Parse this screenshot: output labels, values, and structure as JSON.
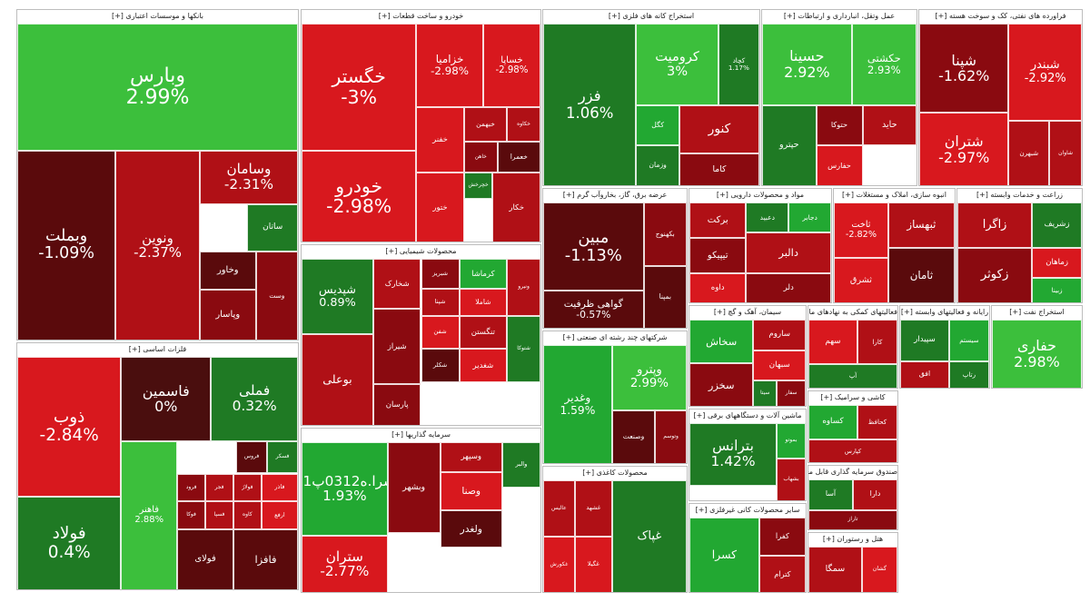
{
  "colors": {
    "pos_strong": "#22a832",
    "pos_mid": "#3cbf3c",
    "pos_light": "#63cf4a",
    "neg_light": "#d8181e",
    "neg_mid": "#b01016",
    "neg_dark": "#8a0a10",
    "neg_darker": "#5a0a0c",
    "zero": "#4a0e0e",
    "pos_dark": "#1f7a24"
  },
  "chart_data": {
    "type": "treemap",
    "sectors": [
      {
        "title": "بانکها و موسسات اعتباری [+]",
        "tiles": [
          {
            "s": "وبارس",
            "c": "2.99%",
            "v": 2.99
          },
          {
            "s": "وبملت",
            "c": "-1.09%",
            "v": -1.09
          },
          {
            "s": "ونوین",
            "c": "-2.37%",
            "v": -2.37
          },
          {
            "s": "وسامان",
            "c": "-2.31%",
            "v": -2.31
          },
          {
            "s": "ساتان",
            "c": "",
            "v": 1.2
          },
          {
            "s": "وخاور",
            "c": "",
            "v": -1.5
          },
          {
            "s": "وپاسار",
            "c": "",
            "v": -1.8
          },
          {
            "s": "وست",
            "c": "",
            "v": -2.0
          }
        ]
      },
      {
        "title": "فلزات اساسی [+]",
        "tiles": [
          {
            "s": "ذوب",
            "c": "-2.84%",
            "v": -2.84
          },
          {
            "s": "فولاد",
            "c": "0.4%",
            "v": 0.4
          },
          {
            "s": "فاسمین",
            "c": "0%",
            "v": 0
          },
          {
            "s": "فملی",
            "c": "0.32%",
            "v": 0.32
          },
          {
            "s": "فاهنر",
            "c": "2.88%",
            "v": 2.88
          },
          {
            "s": "فروس",
            "c": "",
            "v": -1.5
          },
          {
            "s": "فسکر",
            "c": "",
            "v": 1.4
          },
          {
            "s": "فرود",
            "c": "",
            "v": -2.0
          },
          {
            "s": "فجر",
            "c": "",
            "v": -2.2
          },
          {
            "s": "فولاژ",
            "c": "",
            "v": -2.5
          },
          {
            "s": "فاذر",
            "c": "",
            "v": -2.6
          },
          {
            "s": "فوکا",
            "c": "",
            "v": -1.7
          },
          {
            "s": "فسپا",
            "c": "",
            "v": -2.1
          },
          {
            "s": "کاوه",
            "c": "",
            "v": -2.3
          },
          {
            "s": "ارفع",
            "c": "",
            "v": -2.8
          },
          {
            "s": "فولای",
            "c": "",
            "v": -1.1
          },
          {
            "s": "فافزا",
            "c": "",
            "v": -1.3
          }
        ]
      },
      {
        "title": "خودرو و ساخت قطعات [+]",
        "tiles": [
          {
            "s": "خگستر",
            "c": "-3%",
            "v": -3
          },
          {
            "s": "خودرو",
            "c": "-2.98%",
            "v": -2.98
          },
          {
            "s": "خزامیا",
            "c": "-2.98%",
            "v": -2.98
          },
          {
            "s": "خساپا",
            "c": "-2.98%",
            "v": -2.98
          },
          {
            "s": "خبهمن",
            "c": "",
            "v": -2.5
          },
          {
            "s": "خکاوه",
            "c": "",
            "v": -2.2
          },
          {
            "s": "خفنر",
            "c": "",
            "v": -2.7
          },
          {
            "s": "خاهن",
            "c": "",
            "v": -1.9
          },
          {
            "s": "خعمرا",
            "c": "",
            "v": -1.4
          },
          {
            "s": "خچرخش",
            "c": "",
            "v": 1.1
          },
          {
            "s": "ختور",
            "c": "",
            "v": -2.6
          },
          {
            "s": "خکار",
            "c": "",
            "v": -2.4
          }
        ]
      },
      {
        "title": "محصولات شیمیایی [+]",
        "tiles": [
          {
            "s": "شپدیس",
            "c": "0.89%",
            "v": 0.89
          },
          {
            "s": "شخارک",
            "c": "",
            "v": -2.5
          },
          {
            "s": "شیراز",
            "c": "",
            "v": -1.8
          },
          {
            "s": "پارسان",
            "c": "",
            "v": -2.0
          },
          {
            "s": "بوعلی",
            "c": "",
            "v": -2.3
          },
          {
            "s": "شبریز",
            "c": "",
            "v": -1.6
          },
          {
            "s": "شپنا",
            "c": "",
            "v": -2.1
          },
          {
            "s": "کرماشا",
            "c": "",
            "v": 1.6
          },
          {
            "s": "شاملا",
            "c": "",
            "v": -2.7
          },
          {
            "s": "ونیرو",
            "c": "",
            "v": -2.4
          },
          {
            "s": "شفن",
            "c": "",
            "v": -2.9
          },
          {
            "s": "شکلر",
            "c": "",
            "v": -1.2
          },
          {
            "s": "تنگستن",
            "c": "",
            "v": -2.2
          },
          {
            "s": "شغدیر",
            "c": "",
            "v": -2.8
          },
          {
            "s": "شتوکا",
            "c": "",
            "v": 1.3
          }
        ]
      },
      {
        "title": "سرمایه گذاریها [+]",
        "tiles": [
          {
            "s": "سرا.ه0312پ01",
            "c": "1.93%",
            "v": 1.93
          },
          {
            "s": "ستران",
            "c": "-2.77%",
            "v": -2.77
          },
          {
            "s": "وسپهر",
            "c": "",
            "v": -2.3
          },
          {
            "s": "وبشهر",
            "c": "",
            "v": -2.0
          },
          {
            "s": "وصنا",
            "c": "",
            "v": -2.6
          },
          {
            "s": "ولغدر",
            "c": "",
            "v": -1.5
          },
          {
            "s": "والبر",
            "c": "",
            "v": 1.2
          }
        ]
      },
      {
        "title": "استخراج کانه های فلزی [+]",
        "tiles": [
          {
            "s": "فزر",
            "c": "1.06%",
            "v": 1.06
          },
          {
            "s": "کرومیت",
            "c": "3%",
            "v": 3
          },
          {
            "s": "کچاد",
            "c": "1.17%",
            "v": 1.17
          },
          {
            "s": "کنور",
            "c": "",
            "v": -2.4
          },
          {
            "s": "کگل",
            "c": "",
            "v": 1.8
          },
          {
            "s": "وزمان",
            "c": "",
            "v": 1.5
          },
          {
            "s": "کاما",
            "c": "",
            "v": -2.0
          }
        ]
      },
      {
        "title": "عرضه برق، گاز، بخاروآب گرم [+]",
        "tiles": [
          {
            "s": "مبین",
            "c": "-1.13%",
            "v": -1.13
          },
          {
            "s": "گواهی ظرفیت",
            "c": "-0.57%",
            "v": -0.57
          },
          {
            "s": "بکهنوج",
            "c": "",
            "v": -2.0
          },
          {
            "s": "بمپنا",
            "c": "",
            "v": -1.5
          }
        ]
      },
      {
        "title": "شرکتهای چند رشته ای صنعتی [+]",
        "tiles": [
          {
            "s": "وغدیر",
            "c": "1.59%",
            "v": 1.59
          },
          {
            "s": "وپترو",
            "c": "2.99%",
            "v": 2.99
          },
          {
            "s": "وصنعت",
            "c": "",
            "v": -0.8
          },
          {
            "s": "وتوسم",
            "c": "",
            "v": -2.0
          }
        ]
      },
      {
        "title": "محصولات کاغذی [+]",
        "tiles": [
          {
            "s": "عالیس",
            "c": "",
            "v": -2.5
          },
          {
            "s": "غکورش",
            "c": "",
            "v": -2.8
          },
          {
            "s": "غشهد",
            "c": "",
            "v": -2.1
          },
          {
            "s": "غگیلا",
            "c": "",
            "v": -2.6
          },
          {
            "s": "غپاک",
            "c": "",
            "v": 1.2
          }
        ]
      },
      {
        "title": "عمل وتقل، انبارداری و ارتباطات [+]",
        "tiles": [
          {
            "s": "حسینا",
            "c": "2.92%",
            "v": 2.92
          },
          {
            "s": "حکشتی",
            "c": "2.93%",
            "v": 2.93
          },
          {
            "s": "حتوکا",
            "c": "",
            "v": -2.0
          },
          {
            "s": "حاید",
            "c": "",
            "v": -2.3
          },
          {
            "s": "حفارس",
            "c": "",
            "v": -2.6
          },
          {
            "s": "حپترو",
            "c": "",
            "v": 1.0
          }
        ]
      },
      {
        "title": "فراورده های نفتی، کک و سوخت هسته [+]",
        "tiles": [
          {
            "s": "شبندر",
            "c": "-2.92%",
            "v": -2.92
          },
          {
            "s": "شپنا",
            "c": "-1.62%",
            "v": -1.62
          },
          {
            "s": "شتران",
            "c": "-2.97%",
            "v": -2.97
          },
          {
            "s": "شبهرن",
            "c": "",
            "v": -2.4
          },
          {
            "s": "شاوان",
            "c": "",
            "v": -2.1
          }
        ]
      },
      {
        "title": "مواد و محصولات دارویی [+]",
        "tiles": [
          {
            "s": "برکت",
            "c": "",
            "v": -2.5
          },
          {
            "s": "تیپیکو",
            "c": "",
            "v": -2.0
          },
          {
            "s": "داوه",
            "c": "",
            "v": -2.7
          },
          {
            "s": "دعبید",
            "c": "",
            "v": 1.3
          },
          {
            "s": "دجابر",
            "c": "",
            "v": 1.8
          },
          {
            "s": "دالبر",
            "c": "",
            "v": -2.3
          },
          {
            "s": "دلر",
            "c": "",
            "v": -1.6
          }
        ]
      },
      {
        "title": "انبوه سازی، املاک و مستغلات [+]",
        "tiles": [
          {
            "s": "ثبهساز",
            "c": "",
            "v": -2.1
          },
          {
            "s": "ثشرق",
            "c": "",
            "v": -2.6
          },
          {
            "s": "ثاخت",
            "c": "-2.82%",
            "v": -2.82
          },
          {
            "s": "ثامان",
            "c": "",
            "v": -1.4
          }
        ]
      },
      {
        "title": "زراعت و خدمات وابسته [+]",
        "tiles": [
          {
            "s": "زاگرا",
            "c": "",
            "v": -2.4
          },
          {
            "s": "زشریف",
            "c": "",
            "v": 1.3
          },
          {
            "s": "زکوثر",
            "c": "",
            "v": -2.0
          },
          {
            "s": "زماهان",
            "c": "",
            "v": -2.7
          },
          {
            "s": "زبینا",
            "c": "",
            "v": 1.6
          }
        ]
      },
      {
        "title": "سیمان، آهک و گچ [+]",
        "tiles": [
          {
            "s": "ساروم",
            "c": "",
            "v": -2.3
          },
          {
            "s": "سبهان",
            "c": "",
            "v": -2.6
          },
          {
            "s": "سخاش",
            "c": "",
            "v": 1.8
          },
          {
            "s": "سخزر",
            "c": "",
            "v": -2.0
          },
          {
            "s": "سیتا",
            "c": "",
            "v": 1.4
          },
          {
            "s": "سفار",
            "c": "",
            "v": -1.8
          }
        ]
      },
      {
        "title": "ماشین آلات و دستگاههای برقی [+]",
        "tiles": [
          {
            "s": "بترانس",
            "c": "1.42%",
            "v": 1.42
          },
          {
            "s": "بموتو",
            "c": "",
            "v": 1.6
          },
          {
            "s": "بشهاب",
            "c": "",
            "v": -2.4
          }
        ]
      },
      {
        "title": "سایر محصولات کانی غیرفلزی [+]",
        "tiles": [
          {
            "s": "کسرا",
            "c": "",
            "v": 1.9
          },
          {
            "s": "کفرا",
            "c": "",
            "v": -2.0
          },
          {
            "s": "کترام",
            "c": "",
            "v": -2.5
          }
        ]
      },
      {
        "title": "فعالیتهای کمکی به نهادهای مالی [+]",
        "tiles": [
          {
            "s": "سهم",
            "c": "",
            "v": -2.7
          },
          {
            "s": "کارا",
            "c": "",
            "v": -2.2
          },
          {
            "s": "آپ",
            "c": "",
            "v": 1.1
          }
        ]
      },
      {
        "title": "رایانه و فعالیتهای وابسته [+]",
        "tiles": [
          {
            "s": "سپیدار",
            "c": "",
            "v": 1.4
          },
          {
            "s": "سیستم",
            "c": "",
            "v": 1.8
          },
          {
            "s": "افق",
            "c": "",
            "v": -2.3
          },
          {
            "s": "رتاپ",
            "c": "",
            "v": 1.2
          }
        ]
      },
      {
        "title": "استخراج نفت [+]",
        "tiles": [
          {
            "s": "حفاری",
            "c": "2.98%",
            "v": 2.98
          }
        ]
      },
      {
        "title": "کاشی و سرامیک [+]",
        "tiles": [
          {
            "s": "کساوه",
            "c": "",
            "v": 1.7
          },
          {
            "s": "کحافظ",
            "c": "",
            "v": -2.1
          },
          {
            "s": "کپارس",
            "c": "",
            "v": -2.5
          }
        ]
      },
      {
        "title": "صندوق سرمایه گذاری قابل معامله [+]",
        "tiles": [
          {
            "s": "آسا",
            "c": "",
            "v": 1.3
          },
          {
            "s": "دارا",
            "c": "",
            "v": -2.2
          },
          {
            "s": "تاراز",
            "c": "",
            "v": -1.8
          }
        ]
      },
      {
        "title": "هتل و رستوران [+]",
        "tiles": [
          {
            "s": "سمگا",
            "c": "",
            "v": -2.4
          },
          {
            "s": "گشان",
            "c": "",
            "v": -2.7
          }
        ]
      }
    ]
  }
}
